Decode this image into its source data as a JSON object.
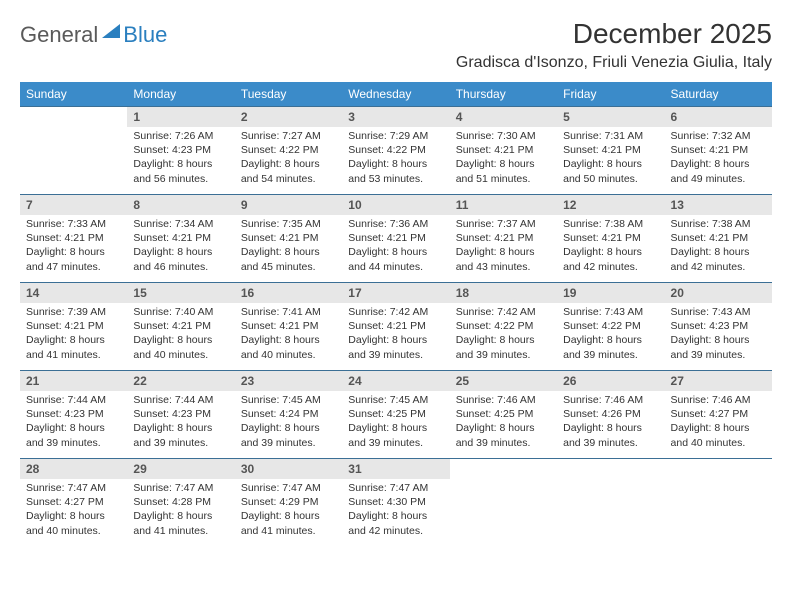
{
  "brand": {
    "part1": "General",
    "part2": "Blue"
  },
  "title": "December 2025",
  "subtitle": "Gradisca d'Isonzo, Friuli Venezia Giulia, Italy",
  "header_bg": "#3b8bc9",
  "header_fg": "#ffffff",
  "daynum_bg": "#e7e7e7",
  "row_border": "#3b6f95",
  "text_color": "#333333",
  "font_size_body": 10.5,
  "font_size_header": 12,
  "dayNames": [
    "Sunday",
    "Monday",
    "Tuesday",
    "Wednesday",
    "Thursday",
    "Friday",
    "Saturday"
  ],
  "weeks": [
    [
      null,
      {
        "n": "1",
        "sr": "7:26 AM",
        "ss": "4:23 PM",
        "dl": "8 hours and 56 minutes."
      },
      {
        "n": "2",
        "sr": "7:27 AM",
        "ss": "4:22 PM",
        "dl": "8 hours and 54 minutes."
      },
      {
        "n": "3",
        "sr": "7:29 AM",
        "ss": "4:22 PM",
        "dl": "8 hours and 53 minutes."
      },
      {
        "n": "4",
        "sr": "7:30 AM",
        "ss": "4:21 PM",
        "dl": "8 hours and 51 minutes."
      },
      {
        "n": "5",
        "sr": "7:31 AM",
        "ss": "4:21 PM",
        "dl": "8 hours and 50 minutes."
      },
      {
        "n": "6",
        "sr": "7:32 AM",
        "ss": "4:21 PM",
        "dl": "8 hours and 49 minutes."
      }
    ],
    [
      {
        "n": "7",
        "sr": "7:33 AM",
        "ss": "4:21 PM",
        "dl": "8 hours and 47 minutes."
      },
      {
        "n": "8",
        "sr": "7:34 AM",
        "ss": "4:21 PM",
        "dl": "8 hours and 46 minutes."
      },
      {
        "n": "9",
        "sr": "7:35 AM",
        "ss": "4:21 PM",
        "dl": "8 hours and 45 minutes."
      },
      {
        "n": "10",
        "sr": "7:36 AM",
        "ss": "4:21 PM",
        "dl": "8 hours and 44 minutes."
      },
      {
        "n": "11",
        "sr": "7:37 AM",
        "ss": "4:21 PM",
        "dl": "8 hours and 43 minutes."
      },
      {
        "n": "12",
        "sr": "7:38 AM",
        "ss": "4:21 PM",
        "dl": "8 hours and 42 minutes."
      },
      {
        "n": "13",
        "sr": "7:38 AM",
        "ss": "4:21 PM",
        "dl": "8 hours and 42 minutes."
      }
    ],
    [
      {
        "n": "14",
        "sr": "7:39 AM",
        "ss": "4:21 PM",
        "dl": "8 hours and 41 minutes."
      },
      {
        "n": "15",
        "sr": "7:40 AM",
        "ss": "4:21 PM",
        "dl": "8 hours and 40 minutes."
      },
      {
        "n": "16",
        "sr": "7:41 AM",
        "ss": "4:21 PM",
        "dl": "8 hours and 40 minutes."
      },
      {
        "n": "17",
        "sr": "7:42 AM",
        "ss": "4:21 PM",
        "dl": "8 hours and 39 minutes."
      },
      {
        "n": "18",
        "sr": "7:42 AM",
        "ss": "4:22 PM",
        "dl": "8 hours and 39 minutes."
      },
      {
        "n": "19",
        "sr": "7:43 AM",
        "ss": "4:22 PM",
        "dl": "8 hours and 39 minutes."
      },
      {
        "n": "20",
        "sr": "7:43 AM",
        "ss": "4:23 PM",
        "dl": "8 hours and 39 minutes."
      }
    ],
    [
      {
        "n": "21",
        "sr": "7:44 AM",
        "ss": "4:23 PM",
        "dl": "8 hours and 39 minutes."
      },
      {
        "n": "22",
        "sr": "7:44 AM",
        "ss": "4:23 PM",
        "dl": "8 hours and 39 minutes."
      },
      {
        "n": "23",
        "sr": "7:45 AM",
        "ss": "4:24 PM",
        "dl": "8 hours and 39 minutes."
      },
      {
        "n": "24",
        "sr": "7:45 AM",
        "ss": "4:25 PM",
        "dl": "8 hours and 39 minutes."
      },
      {
        "n": "25",
        "sr": "7:46 AM",
        "ss": "4:25 PM",
        "dl": "8 hours and 39 minutes."
      },
      {
        "n": "26",
        "sr": "7:46 AM",
        "ss": "4:26 PM",
        "dl": "8 hours and 39 minutes."
      },
      {
        "n": "27",
        "sr": "7:46 AM",
        "ss": "4:27 PM",
        "dl": "8 hours and 40 minutes."
      }
    ],
    [
      {
        "n": "28",
        "sr": "7:47 AM",
        "ss": "4:27 PM",
        "dl": "8 hours and 40 minutes."
      },
      {
        "n": "29",
        "sr": "7:47 AM",
        "ss": "4:28 PM",
        "dl": "8 hours and 41 minutes."
      },
      {
        "n": "30",
        "sr": "7:47 AM",
        "ss": "4:29 PM",
        "dl": "8 hours and 41 minutes."
      },
      {
        "n": "31",
        "sr": "7:47 AM",
        "ss": "4:30 PM",
        "dl": "8 hours and 42 minutes."
      },
      null,
      null,
      null
    ]
  ],
  "labels": {
    "sunrise": "Sunrise:",
    "sunset": "Sunset:",
    "daylight": "Daylight:"
  }
}
